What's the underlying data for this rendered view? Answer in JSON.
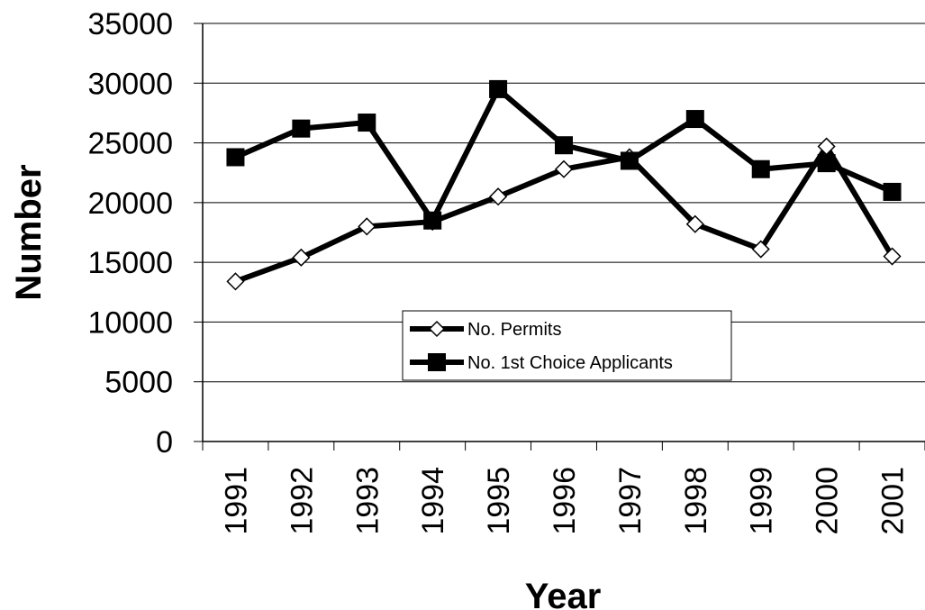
{
  "chart_data": {
    "type": "line",
    "x_label": "Year",
    "y_label": "Number",
    "categories": [
      "1991",
      "1992",
      "1993",
      "1994",
      "1995",
      "1996",
      "1997",
      "1998",
      "1999",
      "2000",
      "2001"
    ],
    "series": [
      {
        "name": "No. Permits",
        "color": "#000000",
        "marker": "diamond",
        "values": [
          13400,
          15400,
          18000,
          18400,
          20500,
          22800,
          23800,
          18200,
          16100,
          24700,
          15500
        ]
      },
      {
        "name": "No. 1st Choice Applicants",
        "color": "#000000",
        "marker": "square",
        "values": [
          23800,
          26200,
          26700,
          18500,
          29500,
          24800,
          23500,
          27000,
          22800,
          23300,
          20900
        ]
      }
    ],
    "ylim": [
      0,
      35000
    ],
    "yticks": [
      0,
      5000,
      10000,
      15000,
      20000,
      25000,
      30000,
      35000
    ],
    "grid": true
  }
}
